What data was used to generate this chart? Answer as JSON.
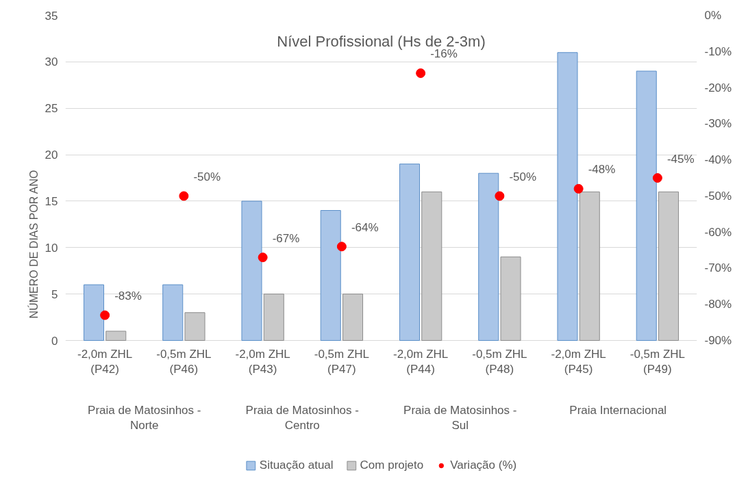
{
  "chart_data": {
    "type": "bar",
    "title": "Nível Profissional (Hs de 2-3m)",
    "ylabel": "NÚMERO DE DIAS POR ANO",
    "categories": [
      "-2,0m ZHL (P42)",
      "-0,5m ZHL (P46)",
      "-2,0m ZHL (P43)",
      "-0,5m ZHL (P47)",
      "-2,0m ZHL (P44)",
      "-0,5m ZHL (P48)",
      "-2,0m ZHL (P45)",
      "-0,5m ZHL (P49)"
    ],
    "annotations": [
      "Praia de Matosinhos - Norte",
      "Praia de Matosinhos - Centro",
      "Praia de Matosinhos - Sul",
      "Praia Internacional"
    ],
    "series": [
      {
        "name": "Situação atual",
        "color": "#a9c5e8",
        "values": [
          6,
          6,
          15,
          14,
          19,
          18,
          31,
          29
        ]
      },
      {
        "name": "Com projeto",
        "color": "#c9c9c9",
        "values": [
          1,
          3,
          5,
          5,
          16,
          9,
          16,
          16
        ]
      },
      {
        "name": "Variação (%)",
        "type": "scatter",
        "axis": "y2",
        "marker": "circle",
        "color": "#ff0000",
        "values": [
          -83,
          -50,
          -67,
          -64,
          -16,
          -50,
          -48,
          -45
        ],
        "value_labels": [
          "-83%",
          "-50%",
          "-67%",
          "-64%",
          "-16%",
          "-50%",
          "-48%",
          "-45%"
        ]
      }
    ],
    "ylim": [
      0,
      35
    ],
    "yticks": [
      0,
      5,
      10,
      15,
      20,
      25,
      30,
      35
    ],
    "y2lim": [
      -90,
      0
    ],
    "y2ticks": [
      {
        "value": 0,
        "label": "0%"
      },
      {
        "value": -10,
        "label": "-10%"
      },
      {
        "value": -20,
        "label": "-20%"
      },
      {
        "value": -30,
        "label": "-30%"
      },
      {
        "value": -40,
        "label": "-40%"
      },
      {
        "value": -50,
        "label": "-50%"
      },
      {
        "value": -60,
        "label": "-60%"
      },
      {
        "value": -70,
        "label": "-70%"
      },
      {
        "value": -80,
        "label": "-80%"
      },
      {
        "value": -90,
        "label": "-90%"
      }
    ],
    "grid": "y",
    "legend": "bottom"
  }
}
